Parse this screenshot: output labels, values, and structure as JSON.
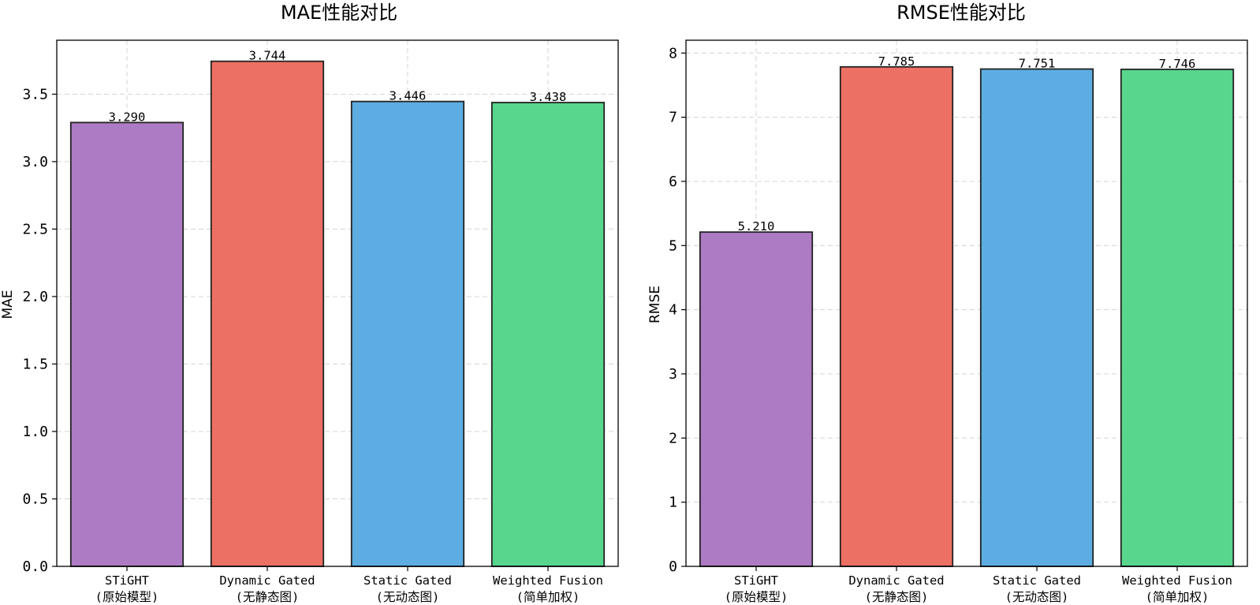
{
  "chart_data": [
    {
      "type": "bar",
      "title": "MAE性能对比",
      "xlabel": "",
      "ylabel": "MAE",
      "ylim": [
        0,
        3.9
      ],
      "yticks": [
        "0.0",
        "0.5",
        "1.0",
        "1.5",
        "2.0",
        "2.5",
        "3.0",
        "3.5"
      ],
      "grid": true,
      "categories": [
        [
          "STiGHT",
          "(原始模型)"
        ],
        [
          "Dynamic Gated",
          "(无静态图)"
        ],
        [
          "Static Gated",
          "(无动态图)"
        ],
        [
          "Weighted Fusion",
          "(简单加权)"
        ]
      ],
      "values": [
        3.29,
        3.744,
        3.446,
        3.438
      ],
      "value_labels": [
        "3.290",
        "3.744",
        "3.446",
        "3.438"
      ],
      "colors": [
        "#ad7bc4",
        "#ec7063",
        "#5dade2",
        "#58d68d"
      ]
    },
    {
      "type": "bar",
      "title": "RMSE性能对比",
      "xlabel": "",
      "ylabel": "RMSE",
      "ylim": [
        0,
        8.2
      ],
      "yticks": [
        "0",
        "1",
        "2",
        "3",
        "4",
        "5",
        "6",
        "7",
        "8"
      ],
      "grid": true,
      "categories": [
        [
          "STiGHT",
          "(原始模型)"
        ],
        [
          "Dynamic Gated",
          "(无静态图)"
        ],
        [
          "Static Gated",
          "(无动态图)"
        ],
        [
          "Weighted Fusion",
          "(简单加权)"
        ]
      ],
      "values": [
        5.21,
        7.785,
        7.751,
        7.746
      ],
      "value_labels": [
        "5.210",
        "7.785",
        "7.751",
        "7.746"
      ],
      "colors": [
        "#ad7bc4",
        "#ec7063",
        "#5dade2",
        "#58d68d"
      ]
    }
  ]
}
